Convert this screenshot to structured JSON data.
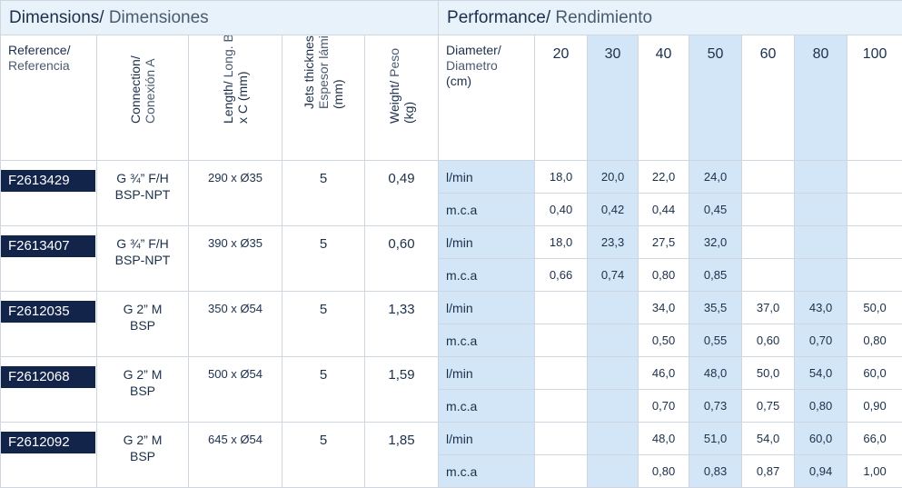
{
  "dimensions_title": {
    "main": "Dimensions/",
    "sub": " Dimensiones"
  },
  "performance_title": {
    "main": "Performance/",
    "sub": " Rendimiento"
  },
  "headers": {
    "reference": {
      "main": "Reference/",
      "sub": "Referencia"
    },
    "connection": {
      "main": "Connection/",
      "sub": "Conexión A"
    },
    "length": {
      "main": "Length/",
      "sub": " Long. B",
      "line2": "x C (mm)"
    },
    "jets": {
      "main": "Jets thickness/",
      "sub": "Espesor lámina",
      "line3": "(mm)"
    },
    "weight": {
      "main": "Weight/",
      "sub": " Peso",
      "line2": "(kg)"
    },
    "diameter": {
      "main": "Diameter/",
      "sub": "Diametro",
      "line3": "(cm)"
    }
  },
  "diameters": [
    "20",
    "30",
    "40",
    "50",
    "60",
    "80",
    "100"
  ],
  "units": {
    "flow": "l/min",
    "pressure": "m.c.a"
  },
  "products": [
    {
      "ref": "F2613429",
      "conn1": "G ¾” F/H",
      "conn2": "BSP-NPT",
      "length": "290 x Ø35",
      "jets": "5",
      "weight": "0,49",
      "lmin": [
        "18,0",
        "20,0",
        "22,0",
        "24,0",
        "",
        "",
        ""
      ],
      "mca": [
        "0,40",
        "0,42",
        "0,44",
        "0,45",
        "",
        "",
        ""
      ]
    },
    {
      "ref": "F2613407",
      "conn1": "G ¾” F/H",
      "conn2": "BSP-NPT",
      "length": "390 x Ø35",
      "jets": "5",
      "weight": "0,60",
      "lmin": [
        "18,0",
        "23,3",
        "27,5",
        "32,0",
        "",
        "",
        ""
      ],
      "mca": [
        "0,66",
        "0,74",
        "0,80",
        "0,85",
        "",
        "",
        ""
      ]
    },
    {
      "ref": "F2612035",
      "conn1": "G 2” M",
      "conn2": "BSP",
      "length": "350 x Ø54",
      "jets": "5",
      "weight": "1,33",
      "lmin": [
        "",
        "",
        "34,0",
        "35,5",
        "37,0",
        "43,0",
        "50,0"
      ],
      "mca": [
        "",
        "",
        "0,50",
        "0,55",
        "0,60",
        "0,70",
        "0,80"
      ]
    },
    {
      "ref": "F2612068",
      "conn1": "G 2” M",
      "conn2": "BSP",
      "length": "500 x Ø54",
      "jets": "5",
      "weight": "1,59",
      "lmin": [
        "",
        "",
        "46,0",
        "48,0",
        "50,0",
        "54,0",
        "60,0"
      ],
      "mca": [
        "",
        "",
        "0,70",
        "0,73",
        "0,75",
        "0,80",
        "0,90"
      ]
    },
    {
      "ref": "F2612092",
      "conn1": "G 2” M",
      "conn2": "BSP",
      "length": "645 x Ø54",
      "jets": "5",
      "weight": "1,85",
      "lmin": [
        "",
        "",
        "48,0",
        "51,0",
        "54,0",
        "60,0",
        "66,0"
      ],
      "mca": [
        "",
        "",
        "0,80",
        "0,83",
        "0,87",
        "0,94",
        "1,00"
      ]
    }
  ]
}
